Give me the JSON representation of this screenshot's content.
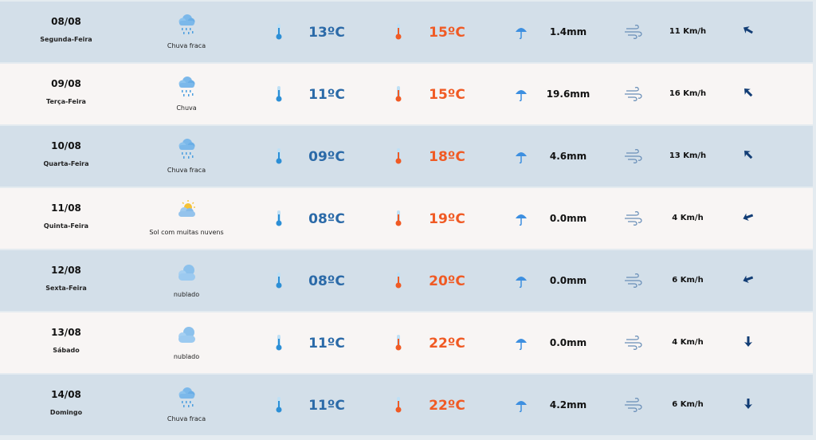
{
  "colors": {
    "row_blue": "#d3dfe9",
    "row_light": "#f8f5f4",
    "min_temp": "#2b6aa8",
    "max_temp": "#f05a24",
    "arrow": "#123d75"
  },
  "days": [
    {
      "date": "08/08",
      "weekday": "Segunda-Feira",
      "icon": "rain-cloud-icon",
      "condition": "Chuva fraca",
      "min": "13ºC",
      "max": "15ºC",
      "rain": "1.4mm",
      "wind_speed": "11 Km/h",
      "wind_direction_deg": 300
    },
    {
      "date": "09/08",
      "weekday": "Terça-Feira",
      "icon": "rain-cloud-icon",
      "condition": "Chuva",
      "min": "11ºC",
      "max": "15ºC",
      "rain": "19.6mm",
      "wind_speed": "16 Km/h",
      "wind_direction_deg": 315
    },
    {
      "date": "10/08",
      "weekday": "Quarta-Feira",
      "icon": "rain-cloud-icon",
      "condition": "Chuva fraca",
      "min": "09ºC",
      "max": "18ºC",
      "rain": "4.6mm",
      "wind_speed": "13 Km/h",
      "wind_direction_deg": 315
    },
    {
      "date": "11/08",
      "weekday": "Quinta-Feira",
      "icon": "sun-cloud-icon",
      "condition": "Sol com muitas nuvens",
      "min": "08ºC",
      "max": "19ºC",
      "rain": "0.0mm",
      "wind_speed": "4 Km/h",
      "wind_direction_deg": 250
    },
    {
      "date": "12/08",
      "weekday": "Sexta-Feira",
      "icon": "cloud-icon",
      "condition": "nublado",
      "min": "08ºC",
      "max": "20ºC",
      "rain": "0.0mm",
      "wind_speed": "6 Km/h",
      "wind_direction_deg": 250
    },
    {
      "date": "13/08",
      "weekday": "Sábado",
      "icon": "cloud-icon",
      "condition": "nublado",
      "min": "11ºC",
      "max": "22ºC",
      "rain": "0.0mm",
      "wind_speed": "4 Km/h",
      "wind_direction_deg": 180
    },
    {
      "date": "14/08",
      "weekday": "Domingo",
      "icon": "rain-cloud-icon",
      "condition": "Chuva fraca",
      "min": "11ºC",
      "max": "22ºC",
      "rain": "4.2mm",
      "wind_speed": "6 Km/h",
      "wind_direction_deg": 180
    }
  ]
}
